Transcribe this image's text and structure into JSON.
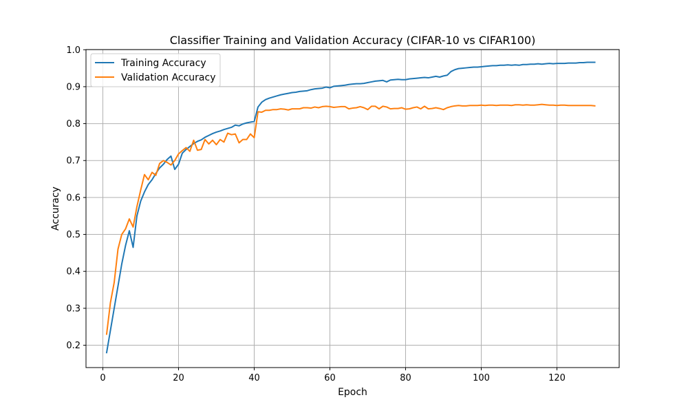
{
  "chart_data": {
    "type": "line",
    "title": "Classifier Training and Validation Accuracy (CIFAR-10 vs CIFAR100)",
    "xlabel": "Epoch",
    "ylabel": "Accuracy",
    "xlim": [
      -4.45,
      136.45
    ],
    "ylim": [
      0.1395,
      1.0005
    ],
    "x_ticks": [
      0,
      20,
      40,
      60,
      80,
      100,
      120
    ],
    "y_ticks": [
      0.2,
      0.3,
      0.4,
      0.5,
      0.6,
      0.7,
      0.8,
      0.9,
      1.0
    ],
    "y_tick_labels": [
      "0.2",
      "0.3",
      "0.4",
      "0.5",
      "0.6",
      "0.7",
      "0.8",
      "0.9",
      "1.0"
    ],
    "grid": true,
    "legend_position": "top-left",
    "x": [
      1,
      2,
      3,
      4,
      5,
      6,
      7,
      8,
      9,
      10,
      11,
      12,
      13,
      14,
      15,
      16,
      17,
      18,
      19,
      20,
      21,
      22,
      23,
      24,
      25,
      26,
      27,
      28,
      29,
      30,
      31,
      32,
      33,
      34,
      35,
      36,
      37,
      38,
      39,
      40,
      41,
      42,
      43,
      44,
      45,
      46,
      47,
      48,
      49,
      50,
      51,
      52,
      53,
      54,
      55,
      56,
      57,
      58,
      59,
      60,
      61,
      62,
      63,
      64,
      65,
      66,
      67,
      68,
      69,
      70,
      71,
      72,
      73,
      74,
      75,
      76,
      77,
      78,
      79,
      80,
      81,
      82,
      83,
      84,
      85,
      86,
      87,
      88,
      89,
      90,
      91,
      92,
      93,
      94,
      95,
      96,
      97,
      98,
      99,
      100,
      101,
      102,
      103,
      104,
      105,
      106,
      107,
      108,
      109,
      110,
      111,
      112,
      113,
      114,
      115,
      116,
      117,
      118,
      119,
      120,
      121,
      122,
      123,
      124,
      125,
      126,
      127,
      128,
      129,
      130
    ],
    "series": [
      {
        "name": "Training Accuracy",
        "color": "#1f77b4",
        "values": [
          0.18,
          0.24,
          0.3,
          0.36,
          0.42,
          0.47,
          0.51,
          0.465,
          0.55,
          0.59,
          0.615,
          0.635,
          0.648,
          0.665,
          0.68,
          0.69,
          0.703,
          0.712,
          0.676,
          0.69,
          0.72,
          0.73,
          0.738,
          0.746,
          0.752,
          0.756,
          0.763,
          0.768,
          0.773,
          0.777,
          0.78,
          0.784,
          0.787,
          0.79,
          0.796,
          0.794,
          0.799,
          0.802,
          0.804,
          0.806,
          0.845,
          0.858,
          0.865,
          0.869,
          0.872,
          0.875,
          0.878,
          0.88,
          0.882,
          0.884,
          0.885,
          0.887,
          0.888,
          0.889,
          0.892,
          0.894,
          0.895,
          0.896,
          0.899,
          0.897,
          0.901,
          0.902,
          0.903,
          0.904,
          0.906,
          0.907,
          0.908,
          0.908,
          0.909,
          0.911,
          0.913,
          0.915,
          0.916,
          0.917,
          0.913,
          0.918,
          0.919,
          0.92,
          0.919,
          0.919,
          0.921,
          0.922,
          0.923,
          0.924,
          0.925,
          0.924,
          0.926,
          0.928,
          0.926,
          0.929,
          0.931,
          0.941,
          0.946,
          0.949,
          0.95,
          0.951,
          0.952,
          0.953,
          0.953,
          0.954,
          0.955,
          0.956,
          0.957,
          0.957,
          0.958,
          0.958,
          0.959,
          0.958,
          0.959,
          0.958,
          0.96,
          0.96,
          0.961,
          0.961,
          0.962,
          0.961,
          0.962,
          0.963,
          0.962,
          0.963,
          0.963,
          0.963,
          0.964,
          0.964,
          0.964,
          0.965,
          0.965,
          0.966,
          0.966,
          0.966
        ]
      },
      {
        "name": "Validation Accuracy",
        "color": "#ff7f0e",
        "values": [
          0.23,
          0.315,
          0.37,
          0.46,
          0.5,
          0.515,
          0.542,
          0.52,
          0.575,
          0.62,
          0.662,
          0.648,
          0.668,
          0.66,
          0.692,
          0.7,
          0.695,
          0.688,
          0.7,
          0.718,
          0.727,
          0.735,
          0.725,
          0.755,
          0.728,
          0.73,
          0.757,
          0.745,
          0.755,
          0.743,
          0.757,
          0.75,
          0.774,
          0.77,
          0.772,
          0.748,
          0.757,
          0.757,
          0.772,
          0.762,
          0.832,
          0.831,
          0.836,
          0.836,
          0.838,
          0.838,
          0.84,
          0.839,
          0.837,
          0.84,
          0.84,
          0.84,
          0.843,
          0.843,
          0.842,
          0.845,
          0.843,
          0.846,
          0.847,
          0.846,
          0.844,
          0.845,
          0.846,
          0.846,
          0.84,
          0.842,
          0.843,
          0.846,
          0.843,
          0.838,
          0.847,
          0.847,
          0.84,
          0.847,
          0.845,
          0.84,
          0.841,
          0.841,
          0.843,
          0.839,
          0.84,
          0.843,
          0.845,
          0.84,
          0.847,
          0.84,
          0.841,
          0.843,
          0.841,
          0.838,
          0.843,
          0.846,
          0.848,
          0.849,
          0.848,
          0.848,
          0.849,
          0.849,
          0.849,
          0.85,
          0.849,
          0.85,
          0.85,
          0.849,
          0.85,
          0.85,
          0.85,
          0.849,
          0.851,
          0.851,
          0.85,
          0.851,
          0.85,
          0.85,
          0.851,
          0.852,
          0.851,
          0.85,
          0.85,
          0.849,
          0.85,
          0.85,
          0.849,
          0.849,
          0.849,
          0.849,
          0.849,
          0.849,
          0.849,
          0.848
        ]
      }
    ]
  }
}
